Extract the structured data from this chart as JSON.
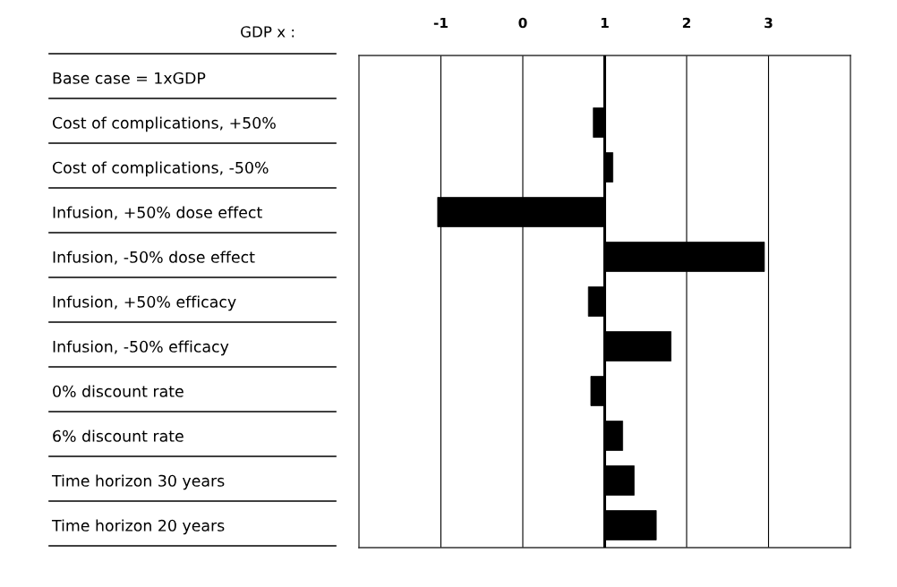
{
  "chart_data": {
    "type": "bar",
    "orientation": "horizontal",
    "xlabel": "GDP x :",
    "categories": [
      "Base case = 1xGDP",
      "Cost of complications, +50%",
      "Cost of complications, -50%",
      "Infusion, +50% dose effect",
      "Infusion, -50% dose effect",
      "Infusion, +50% efficacy",
      "Infusion, -50% efficacy",
      "0% discount rate",
      "6% discount rate",
      "Time horizon 30 years",
      "Time horizon 20 years"
    ],
    "values": [
      null,
      -0.14,
      0.1,
      -2.04,
      1.95,
      -0.2,
      0.81,
      -0.17,
      0.22,
      0.36,
      0.63
    ],
    "base": [
      null,
      1,
      1,
      1,
      1,
      1,
      1,
      1,
      1,
      1,
      1
    ],
    "color": "#000000",
    "xlim": [
      -2,
      4
    ],
    "xticks": [
      -1,
      0,
      1,
      2,
      3
    ],
    "grid": "x",
    "ref_lines": [
      {
        "axis": "x",
        "value": 1,
        "color": "#000000"
      }
    ]
  }
}
